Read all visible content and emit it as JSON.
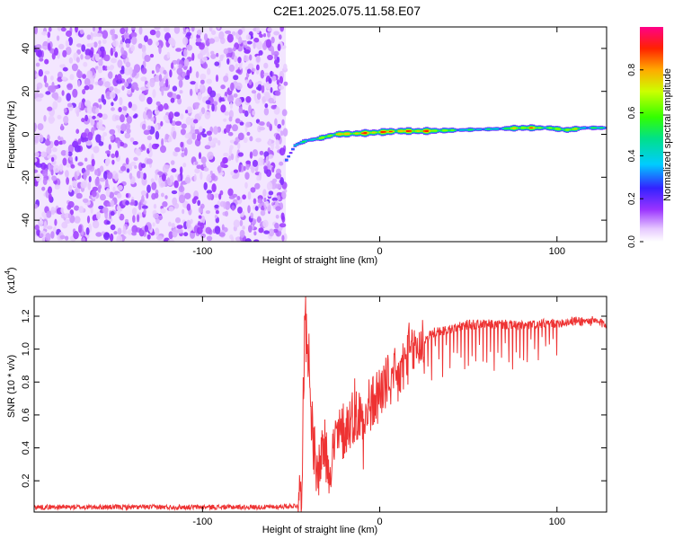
{
  "title": "C2E1.2025.075.11.58.E07",
  "chart_data": [
    {
      "type": "heatmap",
      "title": "C2E1.2025.075.11.58.E07",
      "xlabel": "Height of straight line (km)",
      "ylabel": "Frequency (Hz)",
      "xlim": [
        -195,
        128
      ],
      "ylim": [
        -50,
        50
      ],
      "x_ticks": [
        -100,
        0,
        100
      ],
      "x_tick_labels": [
        "-100",
        "0",
        "100"
      ],
      "y_ticks": [
        -40,
        -20,
        0,
        20,
        40
      ],
      "y_tick_labels": [
        "-40",
        "-20",
        "0",
        "20",
        "40"
      ],
      "colorbar": {
        "label": "Normalized spectral amplitude",
        "range": [
          0,
          1
        ],
        "ticks": [
          0.0,
          0.2,
          0.4,
          0.6,
          0.8
        ],
        "tick_labels": [
          "0.0",
          "0.2",
          "0.4",
          "0.6",
          "0.8"
        ]
      },
      "noise_region_x": [
        -195,
        -53
      ],
      "noise_level": 0.15,
      "signal_track": [
        {
          "x": -53,
          "freq": -12,
          "amp": 0.35
        },
        {
          "x": -48,
          "freq": -5,
          "amp": 0.4
        },
        {
          "x": -42,
          "freq": -3,
          "amp": 0.5
        },
        {
          "x": -35,
          "freq": -2,
          "amp": 0.6
        },
        {
          "x": -25,
          "freq": 0,
          "amp": 0.8
        },
        {
          "x": -10,
          "freq": 0.5,
          "amp": 0.85
        },
        {
          "x": 0,
          "freq": 1,
          "amp": 0.9
        },
        {
          "x": 10,
          "freq": 1.5,
          "amp": 0.85
        },
        {
          "x": 25,
          "freq": 1.5,
          "amp": 0.9
        },
        {
          "x": 45,
          "freq": 2,
          "amp": 0.5
        },
        {
          "x": 65,
          "freq": 2.5,
          "amp": 0.45
        },
        {
          "x": 80,
          "freq": 3,
          "amp": 0.85
        },
        {
          "x": 95,
          "freq": 3,
          "amp": 0.6
        },
        {
          "x": 105,
          "freq": 2,
          "amp": 0.8
        },
        {
          "x": 115,
          "freq": 3,
          "amp": 0.5
        },
        {
          "x": 128,
          "freq": 3,
          "amp": 0.5
        }
      ],
      "grid": false
    },
    {
      "type": "line",
      "xlabel": "Height of straight line (km)",
      "ylabel": "SNR (10 * v/v)",
      "y_multiplier": "(x10⁴)",
      "y_multiplier_base": "(x10",
      "y_multiplier_exp": "4",
      "xlim": [
        -195,
        128
      ],
      "ylim": [
        0.01,
        1.32
      ],
      "x_ticks": [
        -100,
        0,
        100
      ],
      "x_tick_labels": [
        "-100",
        "0",
        "100"
      ],
      "y_ticks": [
        0.2,
        0.4,
        0.6,
        0.8,
        1.0,
        1.2
      ],
      "y_tick_labels": [
        "0.2",
        "0.4",
        "0.6",
        "0.8",
        "1.0",
        "1.2"
      ],
      "series": [
        {
          "color": "#ee3333",
          "x": [
            -195,
            -150,
            -120,
            -100,
            -80,
            -60,
            -46,
            -44,
            -42,
            -40,
            -38,
            -36,
            -34,
            -32,
            -30,
            -28,
            -25,
            -20,
            -15,
            -10,
            -5,
            0,
            5,
            10,
            15,
            20,
            25,
            30,
            40,
            50,
            60,
            70,
            80,
            90,
            100,
            110,
            120,
            128
          ],
          "y": [
            0.04,
            0.04,
            0.04,
            0.04,
            0.04,
            0.04,
            0.05,
            0.2,
            1.32,
            0.9,
            0.5,
            0.2,
            0.3,
            0.45,
            0.35,
            0.3,
            0.45,
            0.5,
            0.6,
            0.6,
            0.65,
            0.75,
            0.8,
            0.8,
            0.95,
            1.0,
            1.05,
            1.1,
            1.12,
            1.15,
            1.15,
            1.15,
            1.14,
            1.15,
            1.16,
            1.17,
            1.17,
            1.15
          ]
        }
      ],
      "grid": false
    }
  ]
}
